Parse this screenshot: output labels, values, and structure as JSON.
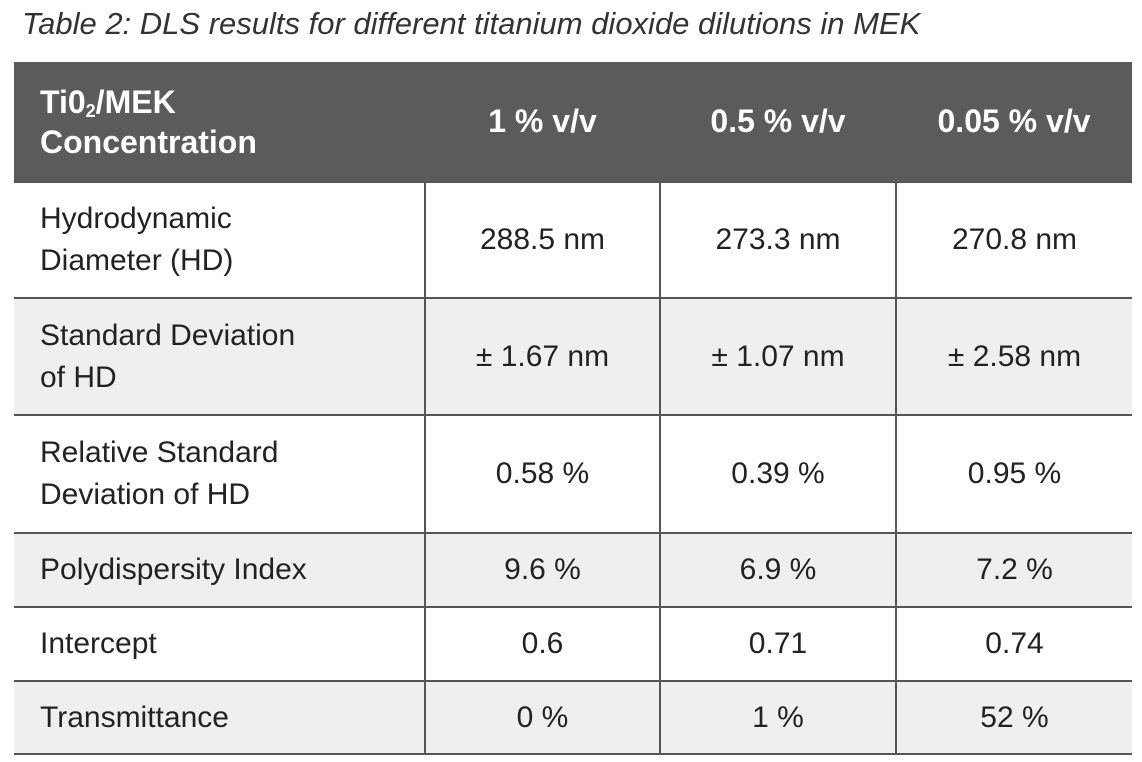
{
  "caption": "Table 2: DLS results for different titanium dioxide dilutions in MEK",
  "table": {
    "header": {
      "first": {
        "prefix": "Ti0",
        "subscript": "2",
        "suffix": "/MEK",
        "line2": "Concentration"
      },
      "columns": [
        "1 % v/v",
        "0.5 % v/v",
        "0.05 % v/v"
      ]
    },
    "rows": [
      {
        "label": [
          "Hydrodynamic",
          "Diameter (HD)"
        ],
        "cells": [
          "288.5 nm",
          "273.3 nm",
          "270.8 nm"
        ]
      },
      {
        "label": [
          "Standard Deviation",
          "of HD"
        ],
        "cells": [
          "± 1.67 nm",
          "± 1.07 nm",
          "± 2.58 nm"
        ]
      },
      {
        "label": [
          "Relative Standard",
          "Deviation of HD"
        ],
        "cells": [
          "0.58 %",
          "0.39 %",
          "0.95 %"
        ]
      },
      {
        "label": [
          "Polydispersity Index"
        ],
        "cells": [
          "9.6 %",
          "6.9 %",
          "7.2 %"
        ]
      },
      {
        "label": [
          "Intercept"
        ],
        "cells": [
          "0.6",
          "0.71",
          "0.74"
        ]
      },
      {
        "label": [
          "Transmittance"
        ],
        "cells": [
          "0 %",
          "1 %",
          "52 %"
        ]
      }
    ]
  }
}
